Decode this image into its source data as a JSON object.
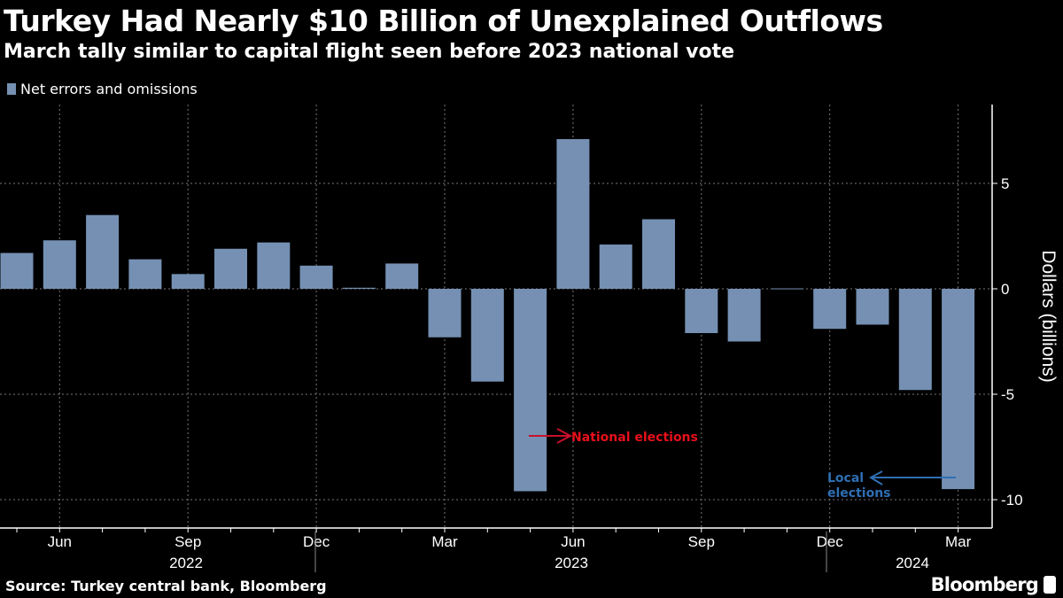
{
  "header": {
    "title": "Turkey Had Nearly $10 Billion of Unexplained Outflows",
    "subtitle": "March tally similar to capital flight seen before 2023 national vote"
  },
  "footer": {
    "source": "Source: Turkey central bank, Bloomberg",
    "logo": "Bloomberg"
  },
  "chart_data": {
    "type": "bar",
    "title": "Turkey Had Nearly $10 Billion of Unexplained Outflows",
    "subtitle": "March tally similar to capital flight seen before 2023 national vote",
    "ylabel": "Dollars (billions)",
    "xlabel": "",
    "ylim": [
      -11.1,
      8.6
    ],
    "yticks": [
      5,
      0,
      -5,
      -10
    ],
    "grid": true,
    "legend_position": "top-left",
    "y_axis_side": "right",
    "categories": [
      "2022-05",
      "2022-06",
      "2022-07",
      "2022-08",
      "2022-09",
      "2022-10",
      "2022-11",
      "2022-12",
      "2023-01",
      "2023-02",
      "2023-03",
      "2023-04",
      "2023-05",
      "2023-06",
      "2023-07",
      "2023-08",
      "2023-09",
      "2023-10",
      "2023-11",
      "2023-12",
      "2024-01",
      "2024-02",
      "2024-03"
    ],
    "series": [
      {
        "name": "Net errors and omissions",
        "color": "#7590b3",
        "values": [
          1.7,
          2.3,
          3.5,
          1.4,
          0.7,
          1.9,
          2.2,
          1.1,
          0.05,
          1.2,
          -2.3,
          -4.4,
          -9.6,
          7.1,
          2.1,
          3.3,
          -2.1,
          -2.5,
          0.02,
          -1.9,
          -1.7,
          -4.8,
          -9.5
        ]
      }
    ],
    "x_tick_labels": [
      {
        "month": "2022-06",
        "label": "Jun"
      },
      {
        "month": "2022-09",
        "label": "Sep"
      },
      {
        "month": "2022-12",
        "label": "Dec"
      },
      {
        "month": "2023-03",
        "label": "Mar"
      },
      {
        "month": "2023-06",
        "label": "Jun"
      },
      {
        "month": "2023-09",
        "label": "Sep"
      },
      {
        "month": "2023-12",
        "label": "Dec"
      },
      {
        "month": "2024-03",
        "label": "Mar"
      }
    ],
    "year_labels": [
      "2022",
      "2023",
      "2024"
    ],
    "annotations": [
      {
        "text": "National elections",
        "month": "2023-05",
        "color": "#e8101a"
      },
      {
        "text": "Local elections",
        "month": "2024-03",
        "color": "#2f6fb4"
      }
    ]
  }
}
